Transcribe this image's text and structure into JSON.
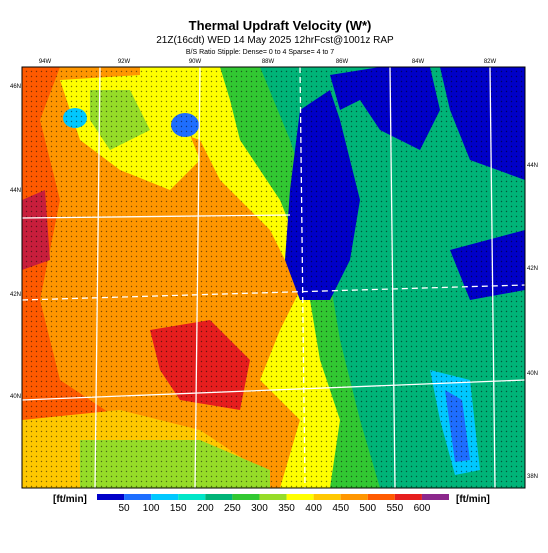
{
  "header": {
    "title": "Thermal Updraft Velocity (W*)",
    "subtitle": "21Z(16cdt) WED 14 May 2025 12hrFcst@1001z RAP",
    "note": "B/S Ratio Stipple: Dense= 0 to 4  Sparse= 4 to 7"
  },
  "map": {
    "top_labels": [
      "94W",
      "92W",
      "90W",
      "88W",
      "86W",
      "84W",
      "82W"
    ],
    "left_labels": [
      "46N",
      "44N",
      "42N",
      "40N"
    ],
    "right_labels": [
      "44N",
      "42N",
      "40N",
      "38N"
    ]
  },
  "colorbar": {
    "unit_left": "[ft/min]",
    "unit_right": "[ft/min]",
    "ticks": [
      50,
      100,
      150,
      200,
      250,
      300,
      350,
      400,
      450,
      500,
      550,
      600
    ],
    "colors": [
      "#0000c8",
      "#1e6eff",
      "#00c8ff",
      "#00e6c8",
      "#00b478",
      "#32c832",
      "#96dc28",
      "#ffff00",
      "#ffc800",
      "#ff9600",
      "#ff5a00",
      "#e61e1e",
      "#8c288c"
    ]
  }
}
